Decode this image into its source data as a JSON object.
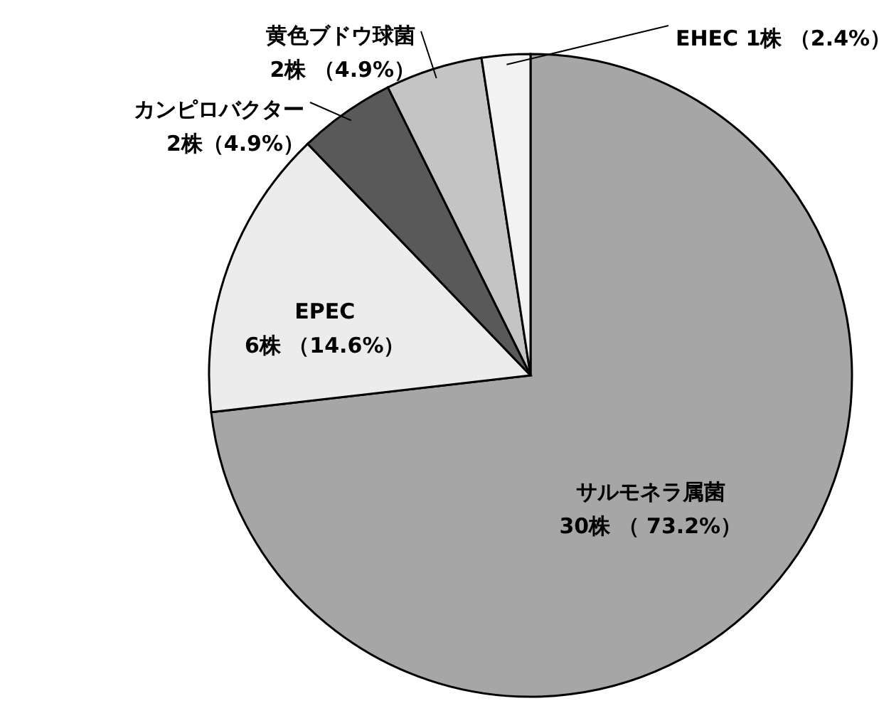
{
  "chart_data": {
    "type": "pie",
    "categories": [
      "サルモネラ属菌",
      "EPEC",
      "カンピロバクター",
      "黄色ブドウ球菌",
      "EHEC"
    ],
    "values": [
      30,
      6,
      2,
      2,
      1
    ],
    "colors": [
      "#a6a6a6",
      "#ececec",
      "#595959",
      "#c4c4c4",
      "#f2f2f2"
    ],
    "value_labels": [
      "30株 （ 73.2%）",
      "6株 （14.6%）",
      "2株（4.9%）",
      "2株 （4.9%）",
      "1株 （2.4%）"
    ]
  }
}
